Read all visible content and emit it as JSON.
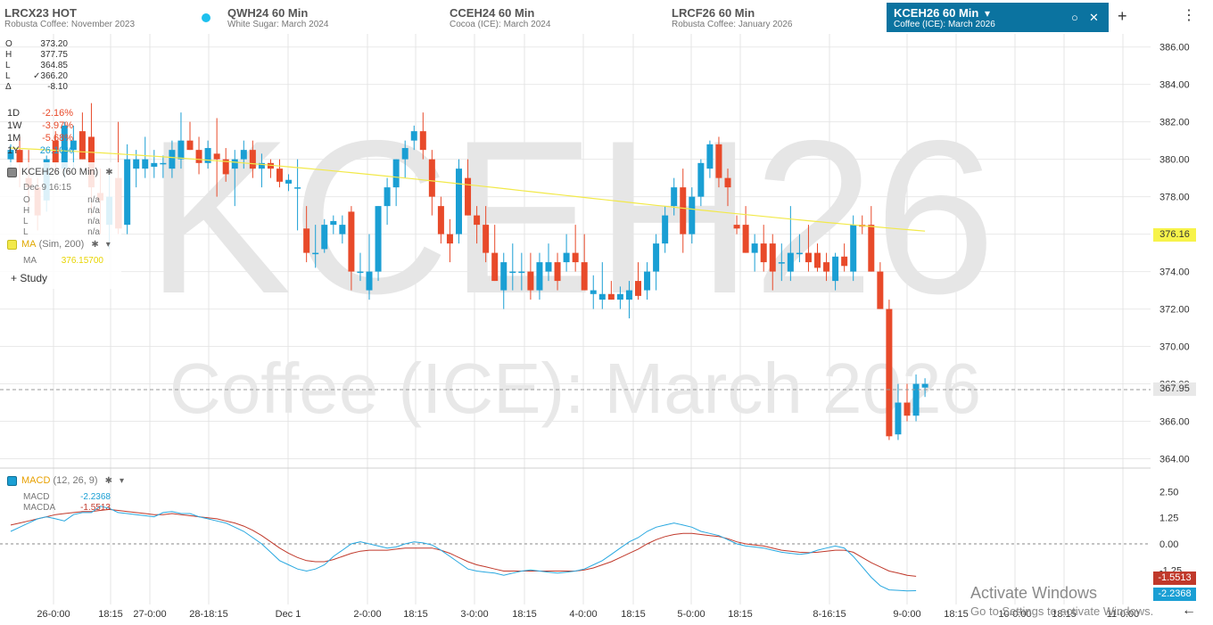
{
  "tabs": [
    {
      "symbol": "LRCX23 HOT",
      "desc": "Robusta Coffee: November 2023"
    },
    {
      "symbol": "QWH24 60 Min",
      "desc": "White Sugar: March 2024"
    },
    {
      "symbol": "CCEH24 60 Min",
      "desc": "Cocoa (ICE): March 2024"
    },
    {
      "symbol": "LRCF26 60 Min",
      "desc": "Robusta Coffee: January 2026"
    },
    {
      "symbol": "KCEH26 60 Min",
      "desc": "Coffee (ICE): March 2026"
    }
  ],
  "header": {
    "dropdown_icon": "▾",
    "clear_icon": "○",
    "close_icon": "✕",
    "add_icon": "+",
    "menu_icon": "⋮"
  },
  "ohlc": {
    "o_label": "O",
    "o": "373.20",
    "h_label": "H",
    "h": "377.75",
    "l_label": "L",
    "l": "364.85",
    "c_label": "L",
    "c": "✓366.20",
    "d_label": "Δ",
    "d": "-8.10"
  },
  "performance": [
    {
      "label": "1D",
      "value": "-2.16%",
      "color": "#e84a2a"
    },
    {
      "label": "1W",
      "value": "-3.97%",
      "color": "#e84a2a"
    },
    {
      "label": "1M",
      "value": "-5.68%",
      "color": "#e84a2a"
    },
    {
      "label": "1Y",
      "value": "26.10%",
      "color": "#1a9fd4"
    }
  ],
  "legend": {
    "instrument": "KCEH26 (60 Min)",
    "time": "Dec 9 16:15",
    "o_label": "O",
    "o_value": "n/a",
    "h_label": "H",
    "h_value": "n/a",
    "l_label": "L",
    "l_value": "n/a",
    "c_label": "L",
    "c_value": "n/a",
    "ma_name": "MA",
    "ma_params": "(Sim, 200)",
    "ma_label": "MA",
    "ma_value": "376.15700",
    "add_study": "Study"
  },
  "watermark": {
    "symbol": "KCEH26",
    "name": "Coffee (ICE): March 2026"
  },
  "price_axis": [
    "386.00",
    "384.00",
    "382.00",
    "380.00",
    "378.00",
    "376.00",
    "374.00",
    "372.00",
    "370.00",
    "368.00",
    "366.00",
    "364.00"
  ],
  "price_tags": {
    "ma": "376.16",
    "last": "367.95"
  },
  "macd": {
    "name": "MACD",
    "params": "(12, 26, 9)",
    "macd_label": "MACD",
    "macd_value": "-2.2368",
    "macda_label": "MACDA",
    "macda_value": "-1.5513",
    "axis": [
      "2.50",
      "1.25",
      "0.00",
      "-1.25"
    ],
    "tag_macda": "-1.5513",
    "tag_macd": "-2.2368"
  },
  "time_axis": [
    "26-0:00",
    "18:15",
    "27-0:00",
    "28-18:15",
    "Dec 1",
    "2-0:00",
    "18:15",
    "3-0:00",
    "18:15",
    "4-0:00",
    "18:15",
    "5-0:00",
    "18:15",
    "8-16:15",
    "9-0:00",
    "18:15",
    "10-0:00",
    "18:15",
    "11-0:00"
  ],
  "time_back_icon": "←",
  "windows_notice": {
    "title": "Activate Windows",
    "subtitle": "Go to Settings to activate Windows."
  },
  "colors": {
    "up": "#1a9fd4",
    "down": "#e84a2a",
    "ma": "#f2e94a",
    "macd": "#29a8e0",
    "macda": "#c0392b",
    "accent": "#0b73a0"
  },
  "chart_data": {
    "type": "candlestick",
    "ylim": [
      363.5,
      386.7
    ],
    "candles": [
      {
        "o": 380.0,
        "h": 380.8,
        "l": 379.2,
        "c": 380.5
      },
      {
        "o": 380.5,
        "h": 381.2,
        "l": 378.5,
        "c": 379.8
      },
      {
        "o": 379.0,
        "h": 380.5,
        "l": 377.5,
        "c": 378.5
      },
      {
        "o": 378.5,
        "h": 379.0,
        "l": 376.2,
        "c": 377.0
      },
      {
        "o": 377.8,
        "h": 380.2,
        "l": 377.2,
        "c": 380.0
      },
      {
        "o": 381.0,
        "h": 381.5,
        "l": 379.2,
        "c": 379.8
      },
      {
        "o": 379.5,
        "h": 382.0,
        "l": 379.0,
        "c": 381.8
      },
      {
        "o": 380.5,
        "h": 381.8,
        "l": 379.5,
        "c": 381.0
      },
      {
        "o": 381.5,
        "h": 382.5,
        "l": 380.0,
        "c": 380.0
      },
      {
        "o": 381.2,
        "h": 383.0,
        "l": 377.0,
        "c": 378.5
      },
      {
        "o": 378.2,
        "h": 379.5,
        "l": 376.0,
        "c": 377.8
      },
      {
        "o": 376.5,
        "h": 379.2,
        "l": 375.2,
        "c": 378.0
      },
      {
        "o": 379.0,
        "h": 382.0,
        "l": 376.0,
        "c": 376.3
      },
      {
        "o": 376.5,
        "h": 380.8,
        "l": 376.0,
        "c": 380.0
      },
      {
        "o": 379.5,
        "h": 380.5,
        "l": 378.5,
        "c": 380.0
      },
      {
        "o": 379.5,
        "h": 381.2,
        "l": 379.0,
        "c": 380.0
      },
      {
        "o": 379.6,
        "h": 380.5,
        "l": 379.0,
        "c": 379.8
      },
      {
        "o": 379.8,
        "h": 380.2,
        "l": 379.0,
        "c": 379.8
      },
      {
        "o": 379.5,
        "h": 381.0,
        "l": 379.0,
        "c": 380.5
      },
      {
        "o": 380.0,
        "h": 382.5,
        "l": 379.5,
        "c": 381.0
      },
      {
        "o": 381.0,
        "h": 382.0,
        "l": 380.5,
        "c": 380.5
      },
      {
        "o": 380.5,
        "h": 381.2,
        "l": 379.2,
        "c": 379.8
      },
      {
        "o": 379.8,
        "h": 381.0,
        "l": 379.5,
        "c": 380.6
      },
      {
        "o": 380.3,
        "h": 382.2,
        "l": 378.0,
        "c": 380.0
      },
      {
        "o": 380.0,
        "h": 380.6,
        "l": 378.8,
        "c": 379.2
      },
      {
        "o": 379.5,
        "h": 380.5,
        "l": 377.5,
        "c": 380.0
      },
      {
        "o": 380.0,
        "h": 381.0,
        "l": 379.5,
        "c": 380.5
      },
      {
        "o": 380.5,
        "h": 381.0,
        "l": 379.0,
        "c": 379.5
      },
      {
        "o": 379.5,
        "h": 380.3,
        "l": 378.5,
        "c": 379.8
      },
      {
        "o": 379.8,
        "h": 380.0,
        "l": 379.0,
        "c": 379.5
      },
      {
        "o": 379.5,
        "h": 380.0,
        "l": 378.5,
        "c": 378.8
      },
      {
        "o": 378.7,
        "h": 379.2,
        "l": 378.3,
        "c": 378.9
      },
      {
        "o": 378.5,
        "h": 380.0,
        "l": 376.2,
        "c": 378.5
      },
      {
        "o": 376.3,
        "h": 377.5,
        "l": 374.5,
        "c": 375.0
      },
      {
        "o": 375.0,
        "h": 376.5,
        "l": 374.2,
        "c": 375.0
      },
      {
        "o": 375.2,
        "h": 376.8,
        "l": 375.0,
        "c": 376.5
      },
      {
        "o": 376.5,
        "h": 377.0,
        "l": 376.0,
        "c": 376.7
      },
      {
        "o": 376.0,
        "h": 377.0,
        "l": 375.5,
        "c": 376.5
      },
      {
        "o": 377.2,
        "h": 377.5,
        "l": 373.0,
        "c": 374.0
      },
      {
        "o": 374.0,
        "h": 375.0,
        "l": 373.5,
        "c": 374.0
      },
      {
        "o": 373.0,
        "h": 376.0,
        "l": 372.5,
        "c": 374.0
      },
      {
        "o": 374.0,
        "h": 377.5,
        "l": 373.5,
        "c": 377.5
      },
      {
        "o": 377.5,
        "h": 379.0,
        "l": 376.5,
        "c": 378.5
      },
      {
        "o": 378.5,
        "h": 380.0,
        "l": 377.5,
        "c": 380.0
      },
      {
        "o": 380.0,
        "h": 381.0,
        "l": 379.0,
        "c": 380.6
      },
      {
        "o": 381.0,
        "h": 381.8,
        "l": 380.5,
        "c": 381.5
      },
      {
        "o": 381.5,
        "h": 382.5,
        "l": 380.0,
        "c": 380.5
      },
      {
        "o": 380.0,
        "h": 380.5,
        "l": 377.0,
        "c": 378.0
      },
      {
        "o": 377.5,
        "h": 378.0,
        "l": 375.5,
        "c": 376.0
      },
      {
        "o": 376.0,
        "h": 376.8,
        "l": 374.5,
        "c": 375.5
      },
      {
        "o": 376.0,
        "h": 380.0,
        "l": 375.5,
        "c": 379.5
      },
      {
        "o": 379.0,
        "h": 380.0,
        "l": 377.0,
        "c": 377.0
      },
      {
        "o": 377.0,
        "h": 377.5,
        "l": 375.5,
        "c": 376.5
      },
      {
        "o": 376.5,
        "h": 377.5,
        "l": 374.5,
        "c": 375.0
      },
      {
        "o": 375.0,
        "h": 376.5,
        "l": 373.5,
        "c": 373.5
      },
      {
        "o": 373.0,
        "h": 375.0,
        "l": 372.0,
        "c": 374.5
      },
      {
        "o": 374.0,
        "h": 375.5,
        "l": 373.0,
        "c": 374.0
      },
      {
        "o": 374.0,
        "h": 375.0,
        "l": 373.0,
        "c": 374.0
      },
      {
        "o": 374.0,
        "h": 375.0,
        "l": 372.5,
        "c": 373.0
      },
      {
        "o": 373.0,
        "h": 375.0,
        "l": 372.5,
        "c": 374.5
      },
      {
        "o": 374.0,
        "h": 375.5,
        "l": 373.5,
        "c": 374.5
      },
      {
        "o": 374.5,
        "h": 375.0,
        "l": 373.0,
        "c": 373.5
      },
      {
        "o": 374.5,
        "h": 376.0,
        "l": 374.0,
        "c": 375.0
      },
      {
        "o": 375.0,
        "h": 376.5,
        "l": 374.0,
        "c": 374.5
      },
      {
        "o": 374.5,
        "h": 376.0,
        "l": 373.0,
        "c": 373.0
      },
      {
        "o": 372.8,
        "h": 373.8,
        "l": 372.0,
        "c": 373.0
      },
      {
        "o": 372.5,
        "h": 374.5,
        "l": 372.0,
        "c": 372.8
      },
      {
        "o": 372.8,
        "h": 373.5,
        "l": 372.5,
        "c": 372.5
      },
      {
        "o": 372.5,
        "h": 373.2,
        "l": 372.0,
        "c": 372.8
      },
      {
        "o": 372.5,
        "h": 373.5,
        "l": 371.5,
        "c": 373.0
      },
      {
        "o": 373.5,
        "h": 374.5,
        "l": 372.5,
        "c": 372.7
      },
      {
        "o": 373.0,
        "h": 374.5,
        "l": 372.5,
        "c": 374.0
      },
      {
        "o": 374.0,
        "h": 376.0,
        "l": 373.0,
        "c": 375.5
      },
      {
        "o": 375.5,
        "h": 377.5,
        "l": 375.0,
        "c": 377.0
      },
      {
        "o": 377.5,
        "h": 379.0,
        "l": 377.0,
        "c": 378.5
      },
      {
        "o": 378.5,
        "h": 379.5,
        "l": 375.0,
        "c": 376.0
      },
      {
        "o": 376.0,
        "h": 378.5,
        "l": 375.5,
        "c": 378.0
      },
      {
        "o": 378.0,
        "h": 380.0,
        "l": 377.5,
        "c": 379.8
      },
      {
        "o": 379.5,
        "h": 381.0,
        "l": 379.0,
        "c": 380.8
      },
      {
        "o": 380.8,
        "h": 381.2,
        "l": 378.5,
        "c": 379.0
      },
      {
        "o": 379.0,
        "h": 379.5,
        "l": 377.5,
        "c": 378.5
      },
      {
        "o": 376.5,
        "h": 377.0,
        "l": 376.0,
        "c": 376.3
      },
      {
        "o": 376.5,
        "h": 377.5,
        "l": 375.0,
        "c": 375.0
      },
      {
        "o": 375.0,
        "h": 376.0,
        "l": 374.0,
        "c": 375.5
      },
      {
        "o": 375.5,
        "h": 376.5,
        "l": 374.0,
        "c": 374.5
      },
      {
        "o": 375.5,
        "h": 376.0,
        "l": 373.0,
        "c": 374.0
      },
      {
        "o": 374.5,
        "h": 375.5,
        "l": 373.5,
        "c": 374.5
      },
      {
        "o": 374.0,
        "h": 377.5,
        "l": 373.5,
        "c": 375.0
      },
      {
        "o": 375.0,
        "h": 376.0,
        "l": 374.5,
        "c": 375.0
      },
      {
        "o": 375.0,
        "h": 376.5,
        "l": 374.0,
        "c": 374.5
      },
      {
        "o": 375.0,
        "h": 375.5,
        "l": 374.0,
        "c": 374.2
      },
      {
        "o": 374.5,
        "h": 375.0,
        "l": 373.5,
        "c": 374.0
      },
      {
        "o": 373.5,
        "h": 375.0,
        "l": 373.0,
        "c": 374.8
      },
      {
        "o": 374.8,
        "h": 375.5,
        "l": 374.0,
        "c": 374.3
      },
      {
        "o": 374.0,
        "h": 377.0,
        "l": 373.5,
        "c": 376.5
      },
      {
        "o": 376.5,
        "h": 377.0,
        "l": 376.0,
        "c": 376.4
      },
      {
        "o": 376.5,
        "h": 377.5,
        "l": 374.0,
        "c": 374.0
      },
      {
        "o": 374.0,
        "h": 374.5,
        "l": 372.0,
        "c": 372.0
      },
      {
        "o": 372.0,
        "h": 372.5,
        "l": 365.0,
        "c": 365.2
      },
      {
        "o": 365.3,
        "h": 368.0,
        "l": 365.0,
        "c": 367.0
      },
      {
        "o": 367.0,
        "h": 368.0,
        "l": 366.0,
        "c": 366.3
      },
      {
        "o": 366.3,
        "h": 368.5,
        "l": 366.0,
        "c": 368.0
      },
      {
        "o": 367.8,
        "h": 368.3,
        "l": 367.3,
        "c": 368.0
      }
    ],
    "ma": {
      "name": "MA",
      "values_start": 380.6,
      "values_end": 376.16
    },
    "macd": {
      "ylim": [
        -2.9,
        3.5
      ],
      "macd": [
        0.6,
        0.8,
        1.0,
        1.2,
        1.3,
        1.2,
        1.1,
        1.4,
        1.5,
        1.5,
        1.8,
        1.7,
        1.5,
        1.45,
        1.4,
        1.35,
        1.3,
        1.5,
        1.55,
        1.45,
        1.45,
        1.3,
        1.2,
        1.1,
        1.0,
        0.8,
        0.6,
        0.3,
        0.0,
        -0.4,
        -0.8,
        -1.0,
        -1.2,
        -1.3,
        -1.2,
        -1.0,
        -0.6,
        -0.3,
        0.0,
        0.1,
        0.0,
        -0.1,
        -0.2,
        -0.15,
        0.0,
        0.1,
        0.05,
        -0.05,
        -0.3,
        -0.6,
        -0.9,
        -1.2,
        -1.3,
        -1.35,
        -1.4,
        -1.5,
        -1.4,
        -1.3,
        -1.25,
        -1.3,
        -1.35,
        -1.4,
        -1.35,
        -1.3,
        -1.2,
        -1.0,
        -0.8,
        -0.5,
        -0.2,
        0.1,
        0.3,
        0.6,
        0.8,
        0.9,
        1.0,
        0.9,
        0.8,
        0.6,
        0.5,
        0.4,
        0.2,
        0.0,
        -0.1,
        -0.15,
        -0.2,
        -0.3,
        -0.4,
        -0.45,
        -0.5,
        -0.45,
        -0.3,
        -0.2,
        -0.1,
        -0.2,
        -0.6,
        -1.1,
        -1.6,
        -2.0,
        -2.2,
        -2.22,
        -2.25,
        -2.24
      ],
      "macda": [
        0.9,
        1.0,
        1.1,
        1.2,
        1.3,
        1.4,
        1.45,
        1.5,
        1.55,
        1.55,
        1.6,
        1.65,
        1.6,
        1.55,
        1.5,
        1.45,
        1.4,
        1.4,
        1.45,
        1.4,
        1.35,
        1.3,
        1.25,
        1.2,
        1.1,
        1.0,
        0.85,
        0.65,
        0.4,
        0.1,
        -0.2,
        -0.45,
        -0.65,
        -0.8,
        -0.85,
        -0.85,
        -0.75,
        -0.6,
        -0.45,
        -0.35,
        -0.3,
        -0.3,
        -0.3,
        -0.25,
        -0.2,
        -0.2,
        -0.2,
        -0.2,
        -0.3,
        -0.45,
        -0.65,
        -0.85,
        -1.0,
        -1.1,
        -1.2,
        -1.3,
        -1.3,
        -1.3,
        -1.3,
        -1.3,
        -1.3,
        -1.3,
        -1.3,
        -1.3,
        -1.25,
        -1.15,
        -1.0,
        -0.85,
        -0.65,
        -0.45,
        -0.25,
        0.0,
        0.2,
        0.35,
        0.45,
        0.5,
        0.5,
        0.45,
        0.4,
        0.35,
        0.25,
        0.1,
        0.0,
        -0.05,
        -0.1,
        -0.2,
        -0.3,
        -0.35,
        -0.4,
        -0.42,
        -0.4,
        -0.35,
        -0.3,
        -0.3,
        -0.4,
        -0.65,
        -0.9,
        -1.1,
        -1.3,
        -1.4,
        -1.5,
        -1.55
      ]
    }
  }
}
